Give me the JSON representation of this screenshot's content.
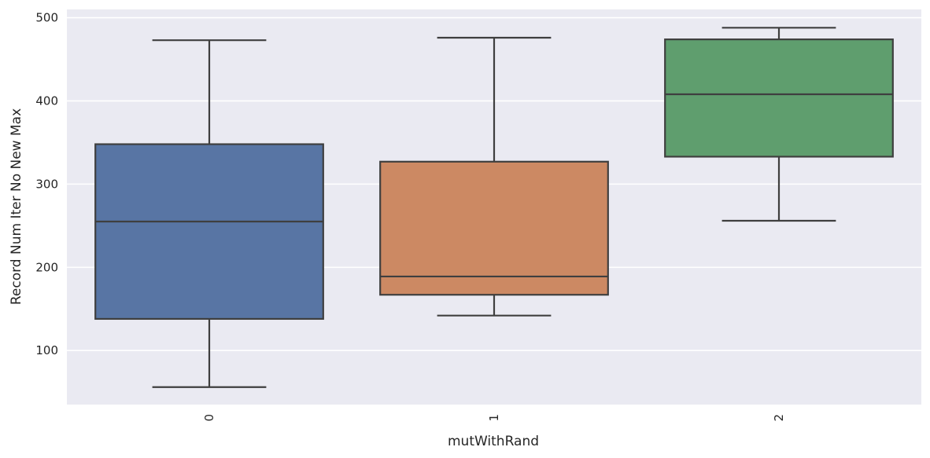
{
  "chart_data": {
    "type": "box",
    "xlabel": "mutWithRand",
    "ylabel": "Record Num Iter No New Max",
    "categories": [
      "0",
      "1",
      "2"
    ],
    "ylim": [
      35,
      510
    ],
    "yticks": [
      100,
      200,
      300,
      400,
      500
    ],
    "grid": true,
    "boxes": [
      {
        "category": "0",
        "whisker_low": 56,
        "q1": 138,
        "median": 255,
        "q3": 348,
        "whisker_high": 473,
        "color": "#5875a4"
      },
      {
        "category": "1",
        "whisker_low": 142,
        "q1": 167,
        "median": 189,
        "q3": 327,
        "whisker_high": 476,
        "color": "#cc8963"
      },
      {
        "category": "2",
        "whisker_low": 256,
        "q1": 333,
        "median": 408,
        "q3": 474,
        "whisker_high": 488,
        "color": "#5f9e6e"
      }
    ]
  }
}
